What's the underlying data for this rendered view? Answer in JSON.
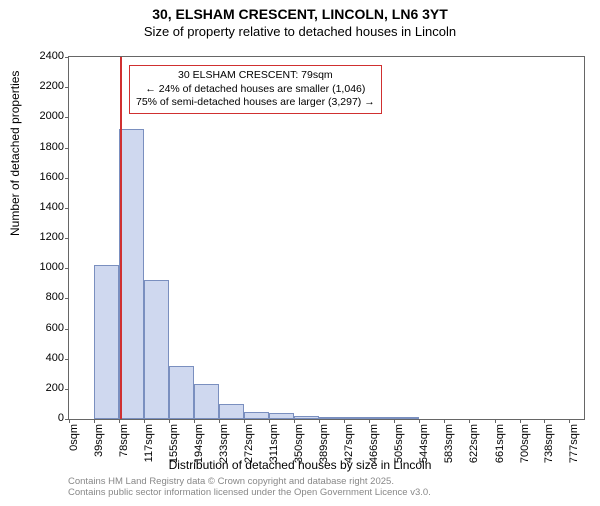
{
  "title_main": "30, ELSHAM CRESCENT, LINCOLN, LN6 3YT",
  "title_sub": "Size of property relative to detached houses in Lincoln",
  "ylabel": "Number of detached properties",
  "xlabel": "Distribution of detached houses by size in Lincoln",
  "chart": {
    "type": "histogram",
    "ylim": [
      0,
      2400
    ],
    "ytick_step": 200,
    "xlim": [
      0,
      800
    ],
    "xtick_labels": [
      "0sqm",
      "39sqm",
      "78sqm",
      "117sqm",
      "155sqm",
      "194sqm",
      "233sqm",
      "272sqm",
      "311sqm",
      "350sqm",
      "389sqm",
      "427sqm",
      "466sqm",
      "505sqm",
      "544sqm",
      "583sqm",
      "622sqm",
      "661sqm",
      "700sqm",
      "738sqm",
      "777sqm"
    ],
    "xtick_positions": [
      0,
      39,
      78,
      117,
      155,
      194,
      233,
      272,
      311,
      350,
      389,
      427,
      466,
      505,
      544,
      583,
      622,
      661,
      700,
      738,
      777
    ],
    "bars": [
      {
        "x0": 39,
        "x1": 78,
        "value": 1020
      },
      {
        "x0": 78,
        "x1": 117,
        "value": 1920
      },
      {
        "x0": 117,
        "x1": 155,
        "value": 920
      },
      {
        "x0": 155,
        "x1": 194,
        "value": 350
      },
      {
        "x0": 194,
        "x1": 233,
        "value": 230
      },
      {
        "x0": 233,
        "x1": 272,
        "value": 100
      },
      {
        "x0": 272,
        "x1": 311,
        "value": 45
      },
      {
        "x0": 311,
        "x1": 350,
        "value": 40
      },
      {
        "x0": 350,
        "x1": 389,
        "value": 20
      },
      {
        "x0": 389,
        "x1": 427,
        "value": 5
      },
      {
        "x0": 427,
        "x1": 466,
        "value": 5
      },
      {
        "x0": 466,
        "x1": 505,
        "value": 3
      },
      {
        "x0": 505,
        "x1": 544,
        "value": 2
      }
    ],
    "bar_fill": "#cfd8ef",
    "bar_stroke": "#7a8fbf",
    "background": "#ffffff",
    "marker": {
      "x": 79,
      "color": "#d03030"
    },
    "annotation": {
      "line1": "30 ELSHAM CRESCENT: 79sqm",
      "line2": "← 24% of detached houses are smaller (1,046)",
      "line3": "75% of semi-detached houses are larger (3,297) →",
      "border_color": "#d03030"
    }
  },
  "footer_line1": "Contains HM Land Registry data © Crown copyright and database right 2025.",
  "footer_line2": "Contains public sector information licensed under the Open Government Licence v3.0."
}
